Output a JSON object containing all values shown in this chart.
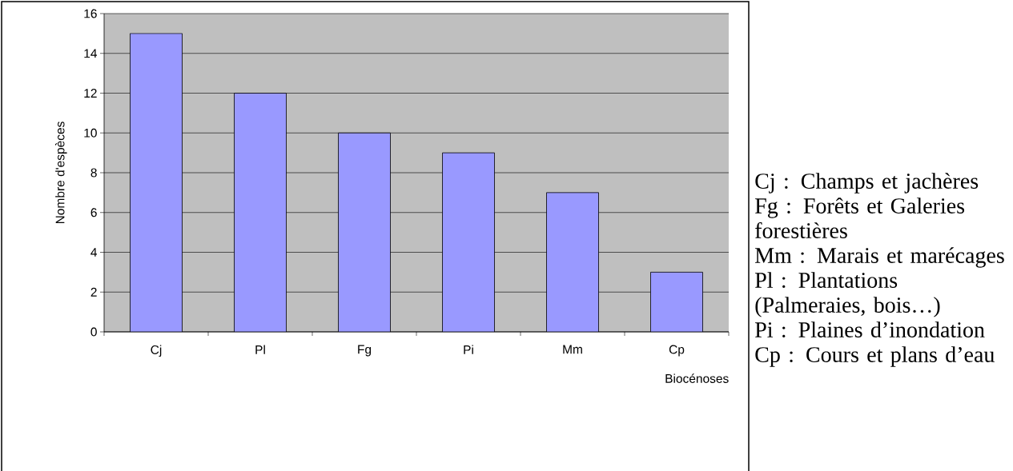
{
  "chart_data": {
    "type": "bar",
    "ylabel": "Nombre d'espèces",
    "xlabel": "Biocénoses",
    "categories": [
      "Cj",
      "Pl",
      "Fg",
      "Pi",
      "Mm",
      "Cp"
    ],
    "values": [
      15,
      12,
      10,
      9,
      7,
      3
    ],
    "color": "#9999ff",
    "ylim": [
      0,
      16
    ],
    "yticks": [
      0,
      2,
      4,
      6,
      8,
      10,
      12,
      14,
      16
    ],
    "grid": "y",
    "annotations": [
      "Cj : Champs et jachères",
      "Fg : Forêts et Galeries forestières",
      "Mm : Marais et marécages",
      "Pl : Plantations (Palmeraies, bois…)",
      "Pi : Plaines d’inondation",
      "Cp : Cours et plans d’eau"
    ]
  }
}
